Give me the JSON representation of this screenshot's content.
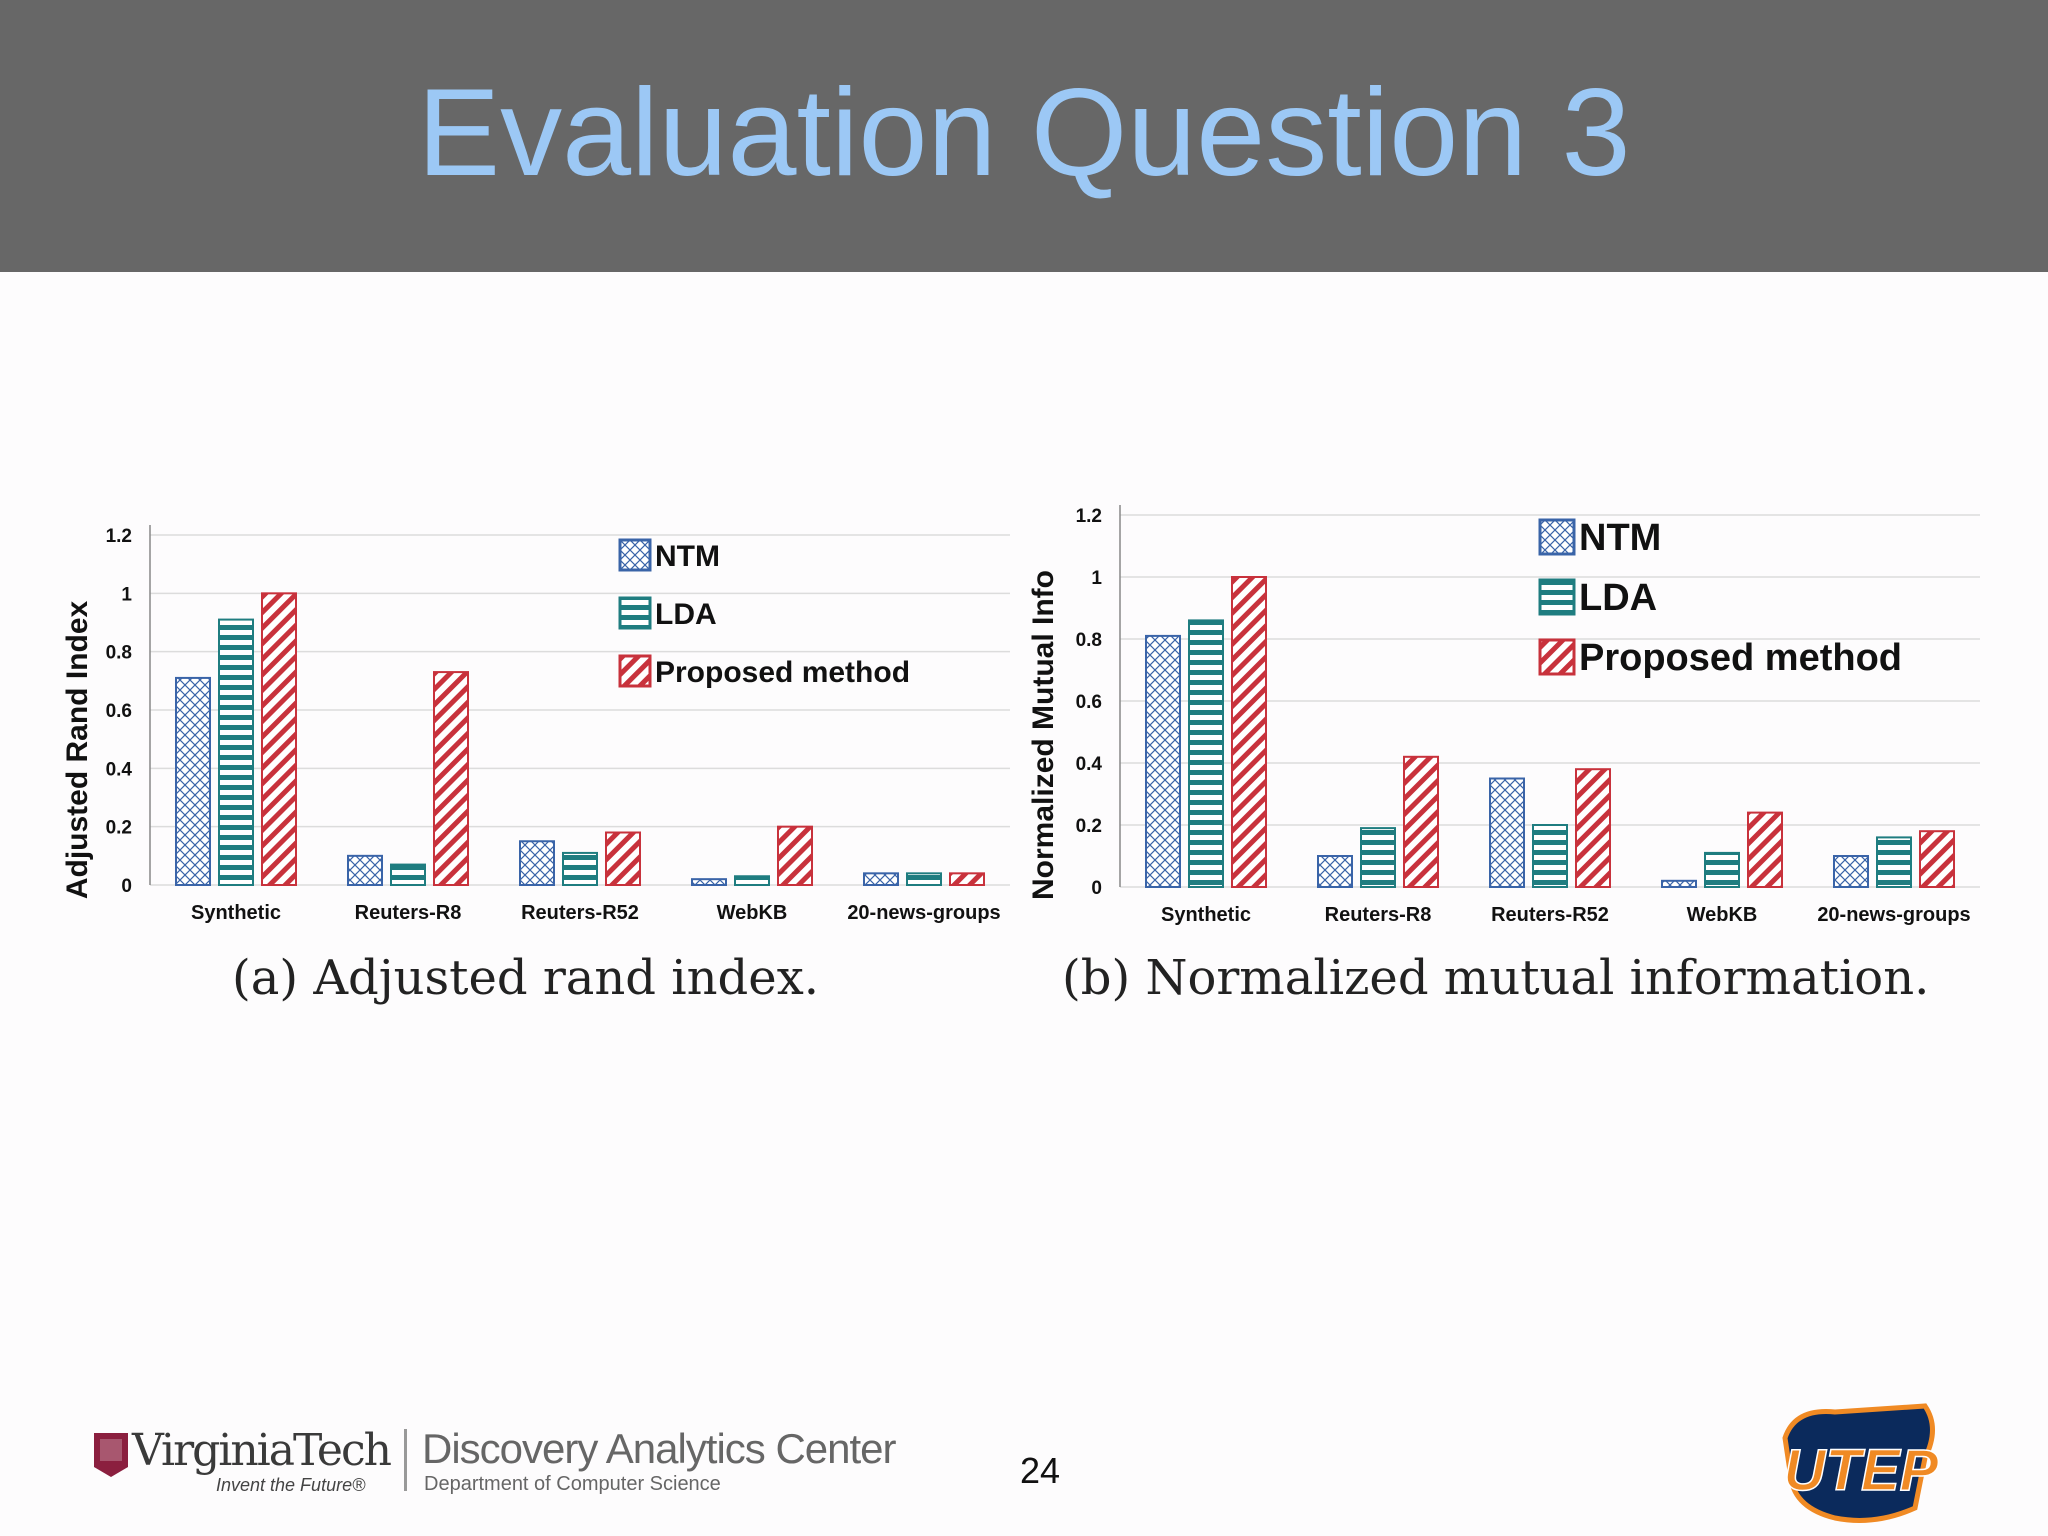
{
  "slide": {
    "title": "Evaluation Question 3",
    "page_number": "24"
  },
  "captions": {
    "a": "(a) Adjusted rand index.",
    "b": "(b) Normalized mutual information."
  },
  "footer": {
    "vt_name": "VirginiaTech",
    "vt_tagline": "Invent the Future®",
    "dac_name": "Discovery Analytics Center",
    "dac_sub": "Department of Computer Science",
    "utep_text": "UTEP"
  },
  "colors": {
    "header_bg": "#676767",
    "title": "#9cc8f5",
    "ntm": "#3a64a8",
    "lda": "#1f7d80",
    "proposed": "#c8323c"
  },
  "chart_data": [
    {
      "type": "bar",
      "ylabel": "Adjusted Rand Index",
      "xlabel": "",
      "ylim": [
        0,
        1.2
      ],
      "yticks": [
        "0",
        "0.2",
        "0.4",
        "0.6",
        "0.8",
        "1",
        "1.2"
      ],
      "grid": true,
      "legend_position": "top-right",
      "categories": [
        "Synthetic",
        "Reuters-R8",
        "Reuters-R52",
        "WebKB",
        "20-news-groups"
      ],
      "series": [
        {
          "name": "NTM",
          "values": [
            0.71,
            0.1,
            0.15,
            0.02,
            0.04
          ]
        },
        {
          "name": "LDA",
          "values": [
            0.91,
            0.07,
            0.11,
            0.03,
            0.04
          ]
        },
        {
          "name": "Proposed method",
          "values": [
            1.0,
            0.73,
            0.18,
            0.2,
            0.04
          ]
        }
      ]
    },
    {
      "type": "bar",
      "ylabel": "Normalized Mutual Info",
      "xlabel": "",
      "ylim": [
        0,
        1.2
      ],
      "yticks": [
        "0",
        "0.2",
        "0.4",
        "0.6",
        "0.8",
        "1",
        "1.2"
      ],
      "grid": true,
      "legend_position": "top-right",
      "categories": [
        "Synthetic",
        "Reuters-R8",
        "Reuters-R52",
        "WebKB",
        "20-news-groups"
      ],
      "series": [
        {
          "name": "NTM",
          "values": [
            0.81,
            0.1,
            0.35,
            0.02,
            0.1
          ]
        },
        {
          "name": "LDA",
          "values": [
            0.86,
            0.19,
            0.2,
            0.11,
            0.16
          ]
        },
        {
          "name": "Proposed method",
          "values": [
            1.0,
            0.42,
            0.38,
            0.24,
            0.18
          ]
        }
      ]
    }
  ]
}
